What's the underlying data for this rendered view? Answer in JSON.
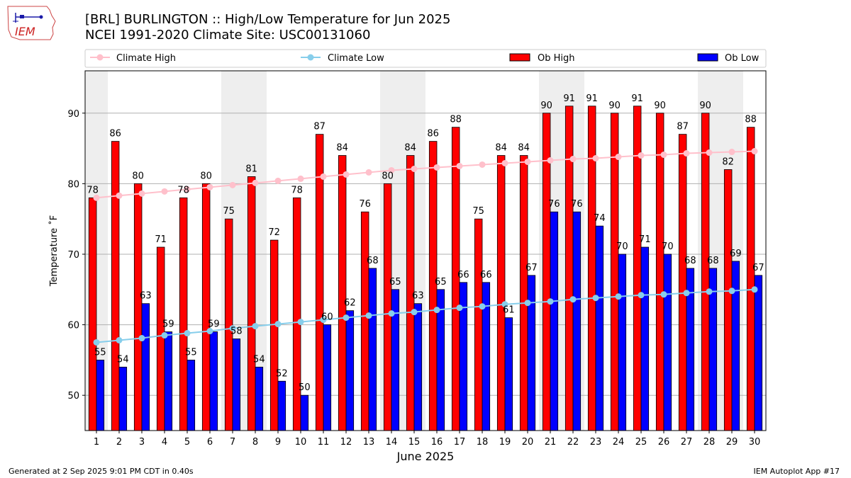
{
  "header": {
    "title_line1": "[BRL] BURLINGTON :: High/Low Temperature for Jun 2025",
    "title_line2": "NCEI 1991-2020 Climate Site: USC00131060",
    "logo_text": "IEM"
  },
  "footer": {
    "left": "Generated at 2 Sep 2025 9:01 PM CDT in 0.40s",
    "right": "IEM Autoplot App #17"
  },
  "colors": {
    "ob_high": "#ff0000",
    "ob_low": "#0000ff",
    "climate_high": "#ffc0cb",
    "climate_low": "#87ceeb",
    "weekend_band": "#eeeeee",
    "grid": "#b0b0b0"
  },
  "chart_data": {
    "type": "bar",
    "xlabel": "June 2025",
    "ylabel": "Temperature ˚F",
    "ylim": [
      45,
      96
    ],
    "yticks": [
      50,
      60,
      70,
      80,
      90
    ],
    "grid": "horizontal",
    "legend_placement": "top",
    "categories": [
      1,
      2,
      3,
      4,
      5,
      6,
      7,
      8,
      9,
      10,
      11,
      12,
      13,
      14,
      15,
      16,
      17,
      18,
      19,
      20,
      21,
      22,
      23,
      24,
      25,
      26,
      27,
      28,
      29,
      30
    ],
    "weekend_days": [
      1,
      7,
      8,
      14,
      15,
      21,
      22,
      28,
      29
    ],
    "series": [
      {
        "name": "Climate High",
        "kind": "line",
        "values": [
          78.0,
          78.3,
          78.6,
          78.9,
          79.2,
          79.5,
          79.8,
          80.1,
          80.4,
          80.7,
          81.0,
          81.3,
          81.6,
          81.9,
          82.1,
          82.3,
          82.5,
          82.7,
          82.9,
          83.1,
          83.3,
          83.5,
          83.6,
          83.8,
          84.0,
          84.1,
          84.3,
          84.4,
          84.5,
          84.6
        ]
      },
      {
        "name": "Climate Low",
        "kind": "line",
        "values": [
          57.5,
          57.8,
          58.1,
          58.5,
          58.8,
          59.1,
          59.5,
          59.8,
          60.1,
          60.4,
          60.7,
          61.0,
          61.3,
          61.6,
          61.8,
          62.1,
          62.4,
          62.6,
          62.9,
          63.1,
          63.3,
          63.6,
          63.8,
          64.0,
          64.2,
          64.3,
          64.5,
          64.7,
          64.8,
          65.0
        ]
      },
      {
        "name": "Ob High",
        "kind": "bar",
        "values": [
          78,
          86,
          80,
          71,
          78,
          80,
          75,
          81,
          72,
          78,
          87,
          84,
          76,
          80,
          84,
          86,
          88,
          75,
          84,
          84,
          90,
          91,
          91,
          90,
          91,
          90,
          87,
          90,
          82,
          88
        ]
      },
      {
        "name": "Ob Low",
        "kind": "bar",
        "values": [
          55,
          54,
          63,
          59,
          55,
          59,
          58,
          54,
          52,
          50,
          60,
          62,
          68,
          65,
          63,
          65,
          66,
          66,
          61,
          67,
          76,
          76,
          74,
          70,
          71,
          70,
          68,
          68,
          69,
          67
        ]
      }
    ]
  }
}
